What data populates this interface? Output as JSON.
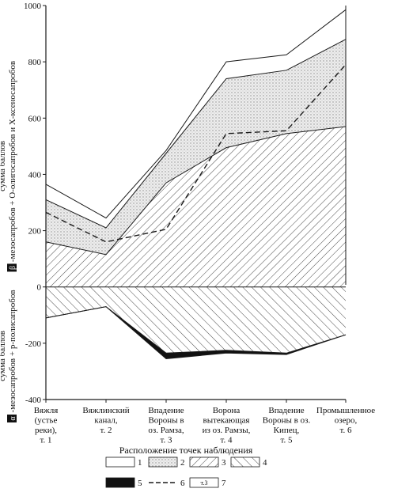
{
  "chart_data": {
    "type": "area",
    "ylim": [
      -400,
      1000
    ],
    "yticks": [
      -400,
      -200,
      0,
      200,
      400,
      600,
      800,
      1000
    ],
    "categories": [
      [
        "Вяжля",
        "(устье",
        "реки),",
        "т. 1"
      ],
      [
        "Вяжлинский",
        "канал,",
        "т. 2"
      ],
      [
        "Впадение",
        "Вороны в",
        "оз. Рамза,",
        "т. 3"
      ],
      [
        "Ворона",
        "вытекающая",
        "из оз. Рамзы,",
        "т. 4"
      ],
      [
        "Впадение",
        "Вороны в оз.",
        "Кипец,",
        "т. 5"
      ],
      [
        "Промышленное",
        "озеро,",
        "т. 6"
      ]
    ],
    "xlabel": "Расположение точек наблюдения",
    "ylabel_upper": [
      "сумма баллов",
      "-мезосапробов + О-олигосапробов и Х-ксеносапробов"
    ],
    "ylabel_upper_symbol": "β",
    "ylabel_lower": [
      "сумма баллов",
      "-мезосапробов + р-полисапробов"
    ],
    "ylabel_lower_symbol": "α",
    "series": [
      {
        "key": "beta_meso",
        "values": [
          160,
          115,
          370,
          495,
          545,
          570
        ]
      },
      {
        "key": "oligo",
        "values": [
          310,
          210,
          475,
          740,
          770,
          880
        ]
      },
      {
        "key": "xeno",
        "values": [
          365,
          245,
          485,
          800,
          825,
          985
        ]
      },
      {
        "key": "alpha_meso",
        "values": [
          -110,
          -70,
          -235,
          -225,
          -235,
          -170
        ]
      },
      {
        "key": "poly",
        "values": [
          -110,
          -70,
          -255,
          -235,
          -240,
          -170
        ]
      },
      {
        "key": "dashed",
        "values": [
          265,
          160,
          205,
          545,
          555,
          790
        ]
      }
    ],
    "legend": [
      {
        "id": "1",
        "label": "1",
        "style": "blank"
      },
      {
        "id": "2",
        "label": "2",
        "style": "dots"
      },
      {
        "id": "3",
        "label": "3",
        "style": "hatch-right"
      },
      {
        "id": "4",
        "label": "4",
        "style": "hatch-left"
      },
      {
        "id": "5",
        "label": "5",
        "style": "solid-black"
      },
      {
        "id": "6",
        "label": "6",
        "style": "dashed-line"
      },
      {
        "id": "7",
        "label": "7",
        "style": "point-label",
        "sample": "т.3"
      }
    ],
    "colors": {
      "ink": "#1a1a1a",
      "dots": "#9a9a9a",
      "fill_dots": "#ececec"
    }
  }
}
